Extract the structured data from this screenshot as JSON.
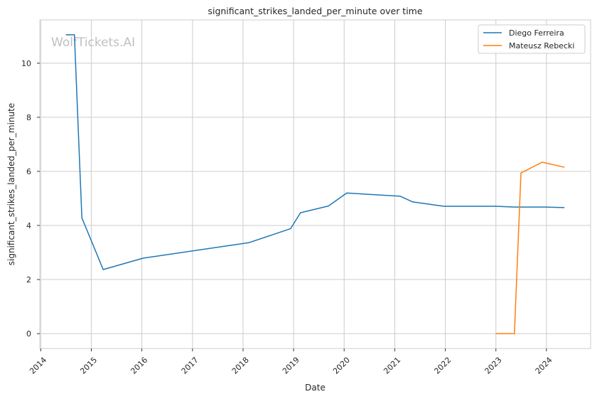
{
  "chart_data": {
    "type": "line",
    "title": "significant_strikes_landed_per_minute over time",
    "xlabel": "Date",
    "ylabel": "significant_strikes_landed_per_minute",
    "watermark": "WolfTickets.AI",
    "x_ticks": [
      "2014",
      "2015",
      "2016",
      "2017",
      "2018",
      "2019",
      "2020",
      "2021",
      "2022",
      "2023",
      "2024"
    ],
    "y_ticks": [
      0,
      2,
      4,
      6,
      8,
      10
    ],
    "xlim": [
      "2013-12-25",
      "2024-11-15"
    ],
    "ylim": [
      -0.55,
      11.6
    ],
    "grid": true,
    "legend_position": "top-right",
    "series": [
      {
        "name": "Diego Ferreira",
        "color": "#1f77b4",
        "points": [
          [
            "2014-07-01",
            11.05
          ],
          [
            "2014-09-01",
            11.05
          ],
          [
            "2014-10-25",
            4.28
          ],
          [
            "2015-03-28",
            2.37
          ],
          [
            "2016-01-10",
            2.79
          ],
          [
            "2018-02-10",
            3.36
          ],
          [
            "2018-12-10",
            3.88
          ],
          [
            "2019-02-20",
            4.47
          ],
          [
            "2019-09-10",
            4.72
          ],
          [
            "2020-01-20",
            5.2
          ],
          [
            "2021-02-10",
            5.08
          ],
          [
            "2021-05-10",
            4.87
          ],
          [
            "2021-12-20",
            4.71
          ],
          [
            "2023-01-01",
            4.71
          ],
          [
            "2023-05-15",
            4.68
          ],
          [
            "2023-12-20",
            4.68
          ],
          [
            "2024-05-10",
            4.66
          ]
        ]
      },
      {
        "name": "Mateusz Rebecki",
        "color": "#ff7f0e",
        "points": [
          [
            "2023-01-01",
            0.0
          ],
          [
            "2023-05-15",
            0.0
          ],
          [
            "2023-07-01",
            5.94
          ],
          [
            "2023-12-01",
            6.34
          ],
          [
            "2024-05-10",
            6.15
          ]
        ]
      }
    ]
  }
}
